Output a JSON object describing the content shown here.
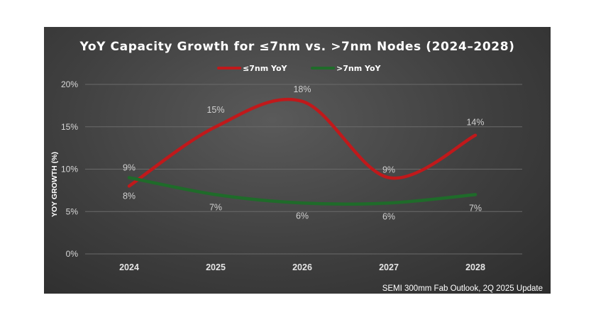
{
  "chart_data": {
    "type": "line",
    "title": "YoY Capacity Growth for ≤7nm vs. >7nm Nodes (2024–2028)",
    "ylabel": "YOY GROWTH (%)",
    "categories": [
      "2024",
      "2025",
      "2026",
      "2027",
      "2028"
    ],
    "ylim": [
      0,
      20
    ],
    "yticks": [
      0,
      5,
      10,
      15,
      20
    ],
    "ytick_labels": [
      "0%",
      "5%",
      "10%",
      "15%",
      "20%"
    ],
    "grid": true,
    "legend_position": "top-center",
    "series": [
      {
        "name": "≤7nm YoY",
        "color": "#c0191b",
        "values": [
          8,
          15,
          18,
          9,
          14
        ],
        "labels": [
          "8%",
          "15%",
          "18%",
          "9%",
          "14%"
        ]
      },
      {
        "name": ">7nm YoY",
        "color": "#1f6b2a",
        "values": [
          9,
          7,
          6,
          6,
          7
        ],
        "labels": [
          "9%",
          "7%",
          "6%",
          "6%",
          "7%"
        ]
      }
    ],
    "source_note": "SEMI 300mm Fab Outlook,  2Q 2025 Update"
  }
}
